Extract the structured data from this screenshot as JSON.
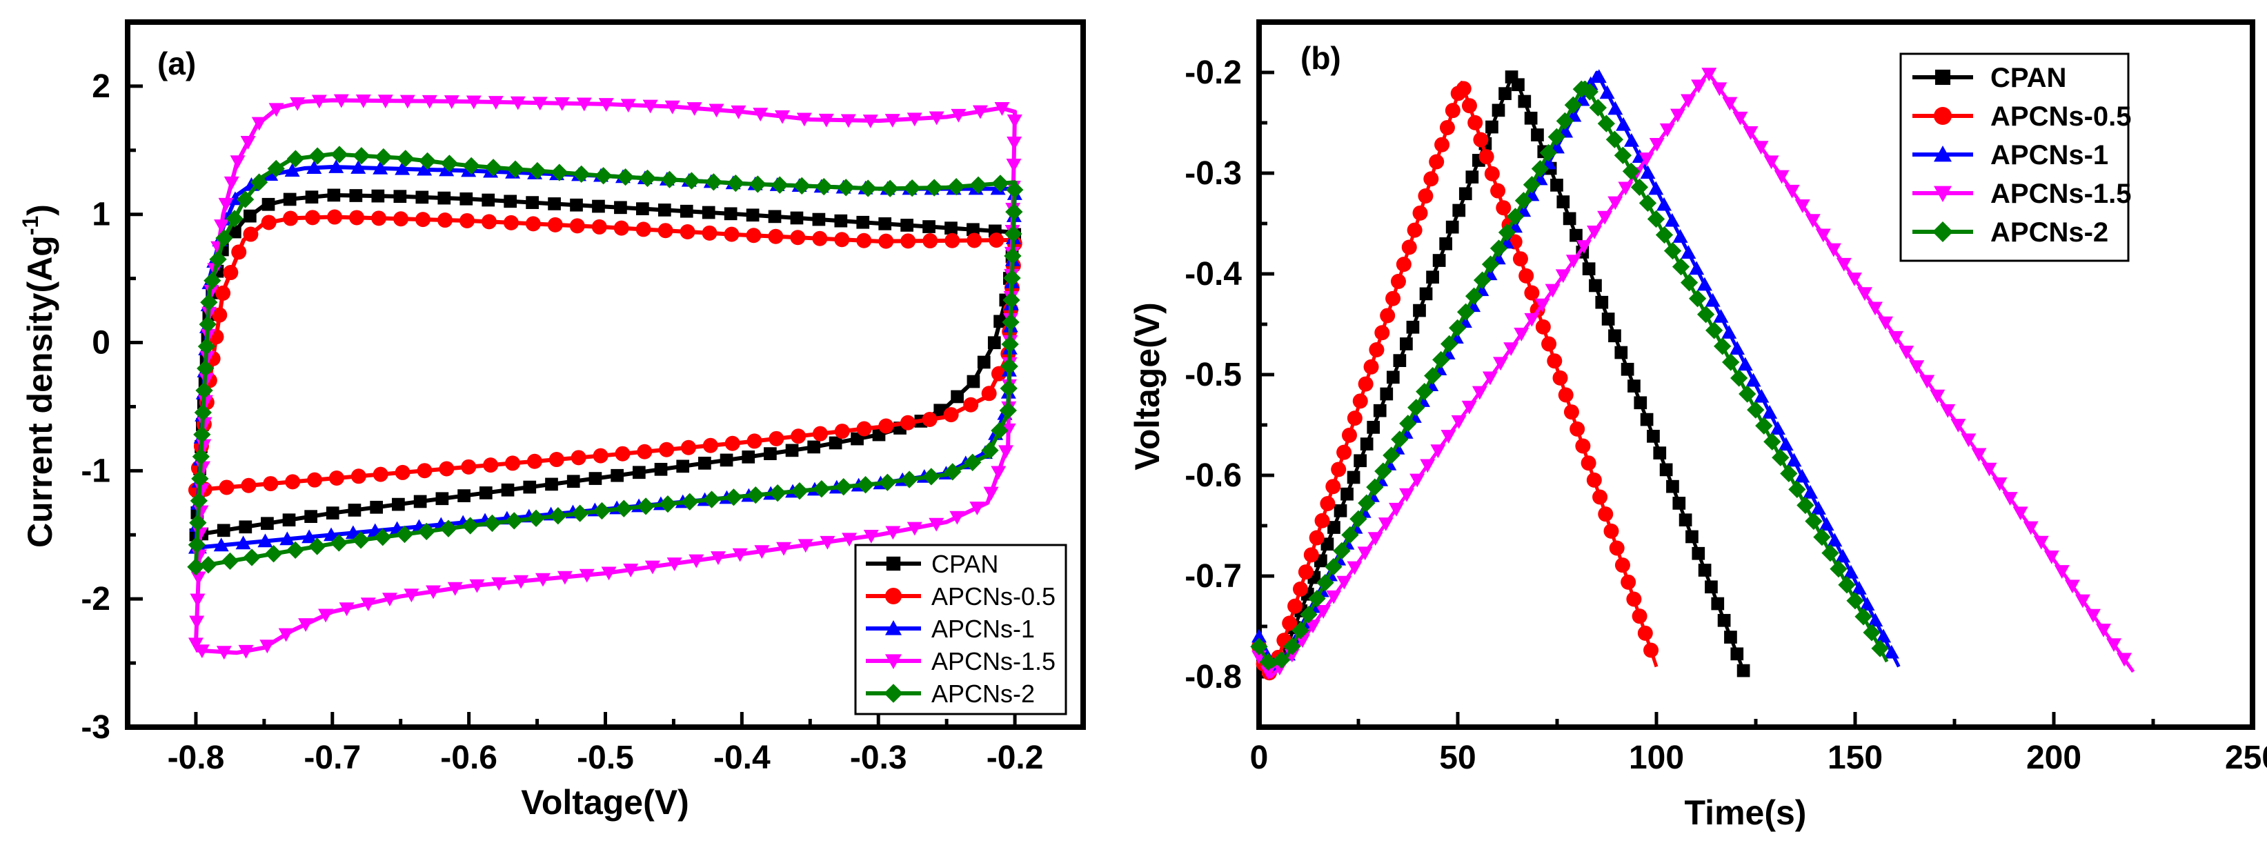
{
  "chart_data": [
    {
      "panel": "(a)",
      "type": "line",
      "title": "",
      "xlabel": "Voltage(V)",
      "ylabel": "Current density(Ag",
      "ylabel_sup": "-1",
      "ylabel_end": ")",
      "xlim": [
        -0.85,
        -0.15
      ],
      "ylim": [
        -3,
        2.5
      ],
      "xticks": [
        -0.8,
        -0.7,
        -0.6,
        -0.5,
        -0.4,
        -0.3,
        -0.2
      ],
      "xtick_labels": [
        "-0.8",
        "-0.7",
        "-0.6",
        "-0.5",
        "-0.4",
        "-0.3",
        "-0.2"
      ],
      "yticks": [
        -3,
        -2,
        -1,
        0,
        1,
        2
      ],
      "ytick_labels": [
        "-3",
        "-2",
        "-1",
        "0",
        "1",
        "2"
      ],
      "legend_position": "bottom-right",
      "series": [
        {
          "name": "CPAN",
          "color": "#000000",
          "marker": "square",
          "upper": [
            [
              -0.8,
              -1.5
            ],
            [
              -0.795,
              -0.6
            ],
            [
              -0.79,
              0.3
            ],
            [
              -0.78,
              0.75
            ],
            [
              -0.765,
              0.95
            ],
            [
              -0.75,
              1.07
            ],
            [
              -0.73,
              1.12
            ],
            [
              -0.7,
              1.15
            ],
            [
              -0.65,
              1.14
            ],
            [
              -0.6,
              1.12
            ],
            [
              -0.5,
              1.06
            ],
            [
              -0.4,
              1.0
            ],
            [
              -0.3,
              0.93
            ],
            [
              -0.2,
              0.86
            ]
          ],
          "lower": [
            [
              -0.8,
              -1.5
            ],
            [
              -0.7,
              -1.33
            ],
            [
              -0.6,
              -1.19
            ],
            [
              -0.5,
              -1.05
            ],
            [
              -0.4,
              -0.9
            ],
            [
              -0.35,
              -0.82
            ],
            [
              -0.3,
              -0.72
            ],
            [
              -0.27,
              -0.62
            ],
            [
              -0.25,
              -0.5
            ],
            [
              -0.23,
              -0.3
            ],
            [
              -0.215,
              0.0
            ],
            [
              -0.205,
              0.4
            ],
            [
              -0.2,
              0.86
            ]
          ]
        },
        {
          "name": "APCNs-0.5",
          "color": "#ff0000",
          "marker": "circle",
          "upper": [
            [
              -0.8,
              -1.15
            ],
            [
              -0.79,
              -0.3
            ],
            [
              -0.78,
              0.4
            ],
            [
              -0.765,
              0.8
            ],
            [
              -0.75,
              0.93
            ],
            [
              -0.73,
              0.97
            ],
            [
              -0.7,
              0.98
            ],
            [
              -0.6,
              0.95
            ],
            [
              -0.5,
              0.9
            ],
            [
              -0.4,
              0.84
            ],
            [
              -0.3,
              0.79
            ],
            [
              -0.2,
              0.8
            ]
          ],
          "lower": [
            [
              -0.8,
              -1.15
            ],
            [
              -0.7,
              -1.06
            ],
            [
              -0.6,
              -0.97
            ],
            [
              -0.5,
              -0.88
            ],
            [
              -0.4,
              -0.78
            ],
            [
              -0.3,
              -0.66
            ],
            [
              -0.25,
              -0.58
            ],
            [
              -0.22,
              -0.42
            ],
            [
              -0.205,
              -0.1
            ],
            [
              -0.2,
              0.8
            ]
          ]
        },
        {
          "name": "APCNs-1",
          "color": "#0000ff",
          "marker": "triangle-up",
          "upper": [
            [
              -0.8,
              -1.6
            ],
            [
              -0.795,
              -0.5
            ],
            [
              -0.79,
              0.5
            ],
            [
              -0.78,
              0.9
            ],
            [
              -0.77,
              1.15
            ],
            [
              -0.75,
              1.3
            ],
            [
              -0.72,
              1.36
            ],
            [
              -0.7,
              1.37
            ],
            [
              -0.6,
              1.34
            ],
            [
              -0.5,
              1.3
            ],
            [
              -0.4,
              1.24
            ],
            [
              -0.3,
              1.2
            ],
            [
              -0.25,
              1.2
            ],
            [
              -0.2,
              1.2
            ]
          ],
          "lower": [
            [
              -0.8,
              -1.6
            ],
            [
              -0.7,
              -1.5
            ],
            [
              -0.6,
              -1.4
            ],
            [
              -0.5,
              -1.3
            ],
            [
              -0.4,
              -1.2
            ],
            [
              -0.3,
              -1.1
            ],
            [
              -0.25,
              -1.02
            ],
            [
              -0.22,
              -0.85
            ],
            [
              -0.205,
              -0.5
            ],
            [
              -0.2,
              1.2
            ]
          ]
        },
        {
          "name": "APCNs-1.5",
          "color": "#ff00ff",
          "marker": "triangle-down",
          "upper": [
            [
              -0.8,
              -2.35
            ],
            [
              -0.795,
              -1.0
            ],
            [
              -0.79,
              0.3
            ],
            [
              -0.78,
              1.0
            ],
            [
              -0.77,
              1.4
            ],
            [
              -0.755,
              1.7
            ],
            [
              -0.74,
              1.83
            ],
            [
              -0.72,
              1.88
            ],
            [
              -0.7,
              1.89
            ],
            [
              -0.6,
              1.88
            ],
            [
              -0.5,
              1.86
            ],
            [
              -0.45,
              1.84
            ],
            [
              -0.4,
              1.8
            ],
            [
              -0.35,
              1.74
            ],
            [
              -0.3,
              1.73
            ],
            [
              -0.25,
              1.76
            ],
            [
              -0.21,
              1.83
            ],
            [
              -0.2,
              1.8
            ]
          ],
          "lower": [
            [
              -0.8,
              -2.4
            ],
            [
              -0.77,
              -2.42
            ],
            [
              -0.75,
              -2.38
            ],
            [
              -0.73,
              -2.25
            ],
            [
              -0.7,
              -2.1
            ],
            [
              -0.65,
              -1.98
            ],
            [
              -0.6,
              -1.9
            ],
            [
              -0.5,
              -1.8
            ],
            [
              -0.4,
              -1.65
            ],
            [
              -0.3,
              -1.5
            ],
            [
              -0.25,
              -1.4
            ],
            [
              -0.22,
              -1.25
            ],
            [
              -0.205,
              -0.8
            ],
            [
              -0.2,
              1.8
            ]
          ]
        },
        {
          "name": "APCNs-2",
          "color": "#008000",
          "marker": "diamond",
          "upper": [
            [
              -0.8,
              -1.75
            ],
            [
              -0.795,
              -0.6
            ],
            [
              -0.79,
              0.4
            ],
            [
              -0.78,
              0.8
            ],
            [
              -0.765,
              1.1
            ],
            [
              -0.75,
              1.3
            ],
            [
              -0.73,
              1.43
            ],
            [
              -0.7,
              1.47
            ],
            [
              -0.65,
              1.44
            ],
            [
              -0.6,
              1.38
            ],
            [
              -0.5,
              1.3
            ],
            [
              -0.4,
              1.24
            ],
            [
              -0.3,
              1.2
            ],
            [
              -0.25,
              1.21
            ],
            [
              -0.2,
              1.25
            ]
          ],
          "lower": [
            [
              -0.8,
              -1.75
            ],
            [
              -0.7,
              -1.57
            ],
            [
              -0.6,
              -1.43
            ],
            [
              -0.5,
              -1.31
            ],
            [
              -0.4,
              -1.2
            ],
            [
              -0.3,
              -1.1
            ],
            [
              -0.25,
              -1.03
            ],
            [
              -0.22,
              -0.88
            ],
            [
              -0.205,
              -0.55
            ],
            [
              -0.2,
              1.25
            ]
          ]
        }
      ]
    },
    {
      "panel": "(b)",
      "type": "line",
      "title": "",
      "xlabel": "Time(s)",
      "ylabel": "Voltage(V)",
      "xlim": [
        0,
        250
      ],
      "ylim": [
        -0.85,
        -0.15
      ],
      "xticks": [
        0,
        50,
        100,
        150,
        200,
        250
      ],
      "xtick_labels": [
        "0",
        "50",
        "100",
        "150",
        "200",
        "250"
      ],
      "yticks": [
        -0.8,
        -0.7,
        -0.6,
        -0.5,
        -0.4,
        -0.3,
        -0.2
      ],
      "ytick_labels": [
        "-0.8",
        "-0.7",
        "-0.6",
        "-0.5",
        "-0.4",
        "-0.3",
        "-0.2"
      ],
      "legend_position": "top-right",
      "series": [
        {
          "name": "CPAN",
          "color": "#000000",
          "marker": "square",
          "points": [
            [
              0,
              -0.77
            ],
            [
              2,
              -0.79
            ],
            [
              6,
              -0.78
            ],
            [
              64,
              -0.2
            ],
            [
              122,
              -0.795
            ]
          ]
        },
        {
          "name": "APCNs-0.5",
          "color": "#ff0000",
          "marker": "circle",
          "points": [
            [
              0,
              -0.77
            ],
            [
              2,
              -0.8
            ],
            [
              5,
              -0.78
            ],
            [
              51,
              -0.21
            ],
            [
              100,
              -0.79
            ]
          ]
        },
        {
          "name": "APCNs-1",
          "color": "#0000ff",
          "marker": "triangle-up",
          "points": [
            [
              0,
              -0.76
            ],
            [
              3,
              -0.79
            ],
            [
              7,
              -0.78
            ],
            [
              85,
              -0.2
            ],
            [
              161,
              -0.79
            ]
          ]
        },
        {
          "name": "APCNs-1.5",
          "color": "#ff00ff",
          "marker": "triangle-down",
          "points": [
            [
              0,
              -0.78
            ],
            [
              3,
              -0.8
            ],
            [
              8,
              -0.78
            ],
            [
              113,
              -0.2
            ],
            [
              220,
              -0.795
            ]
          ]
        },
        {
          "name": "APCNs-2",
          "color": "#008000",
          "marker": "diamond",
          "points": [
            [
              0,
              -0.77
            ],
            [
              3,
              -0.79
            ],
            [
              7,
              -0.78
            ],
            [
              82,
              -0.21
            ],
            [
              158,
              -0.785
            ]
          ]
        }
      ]
    }
  ]
}
